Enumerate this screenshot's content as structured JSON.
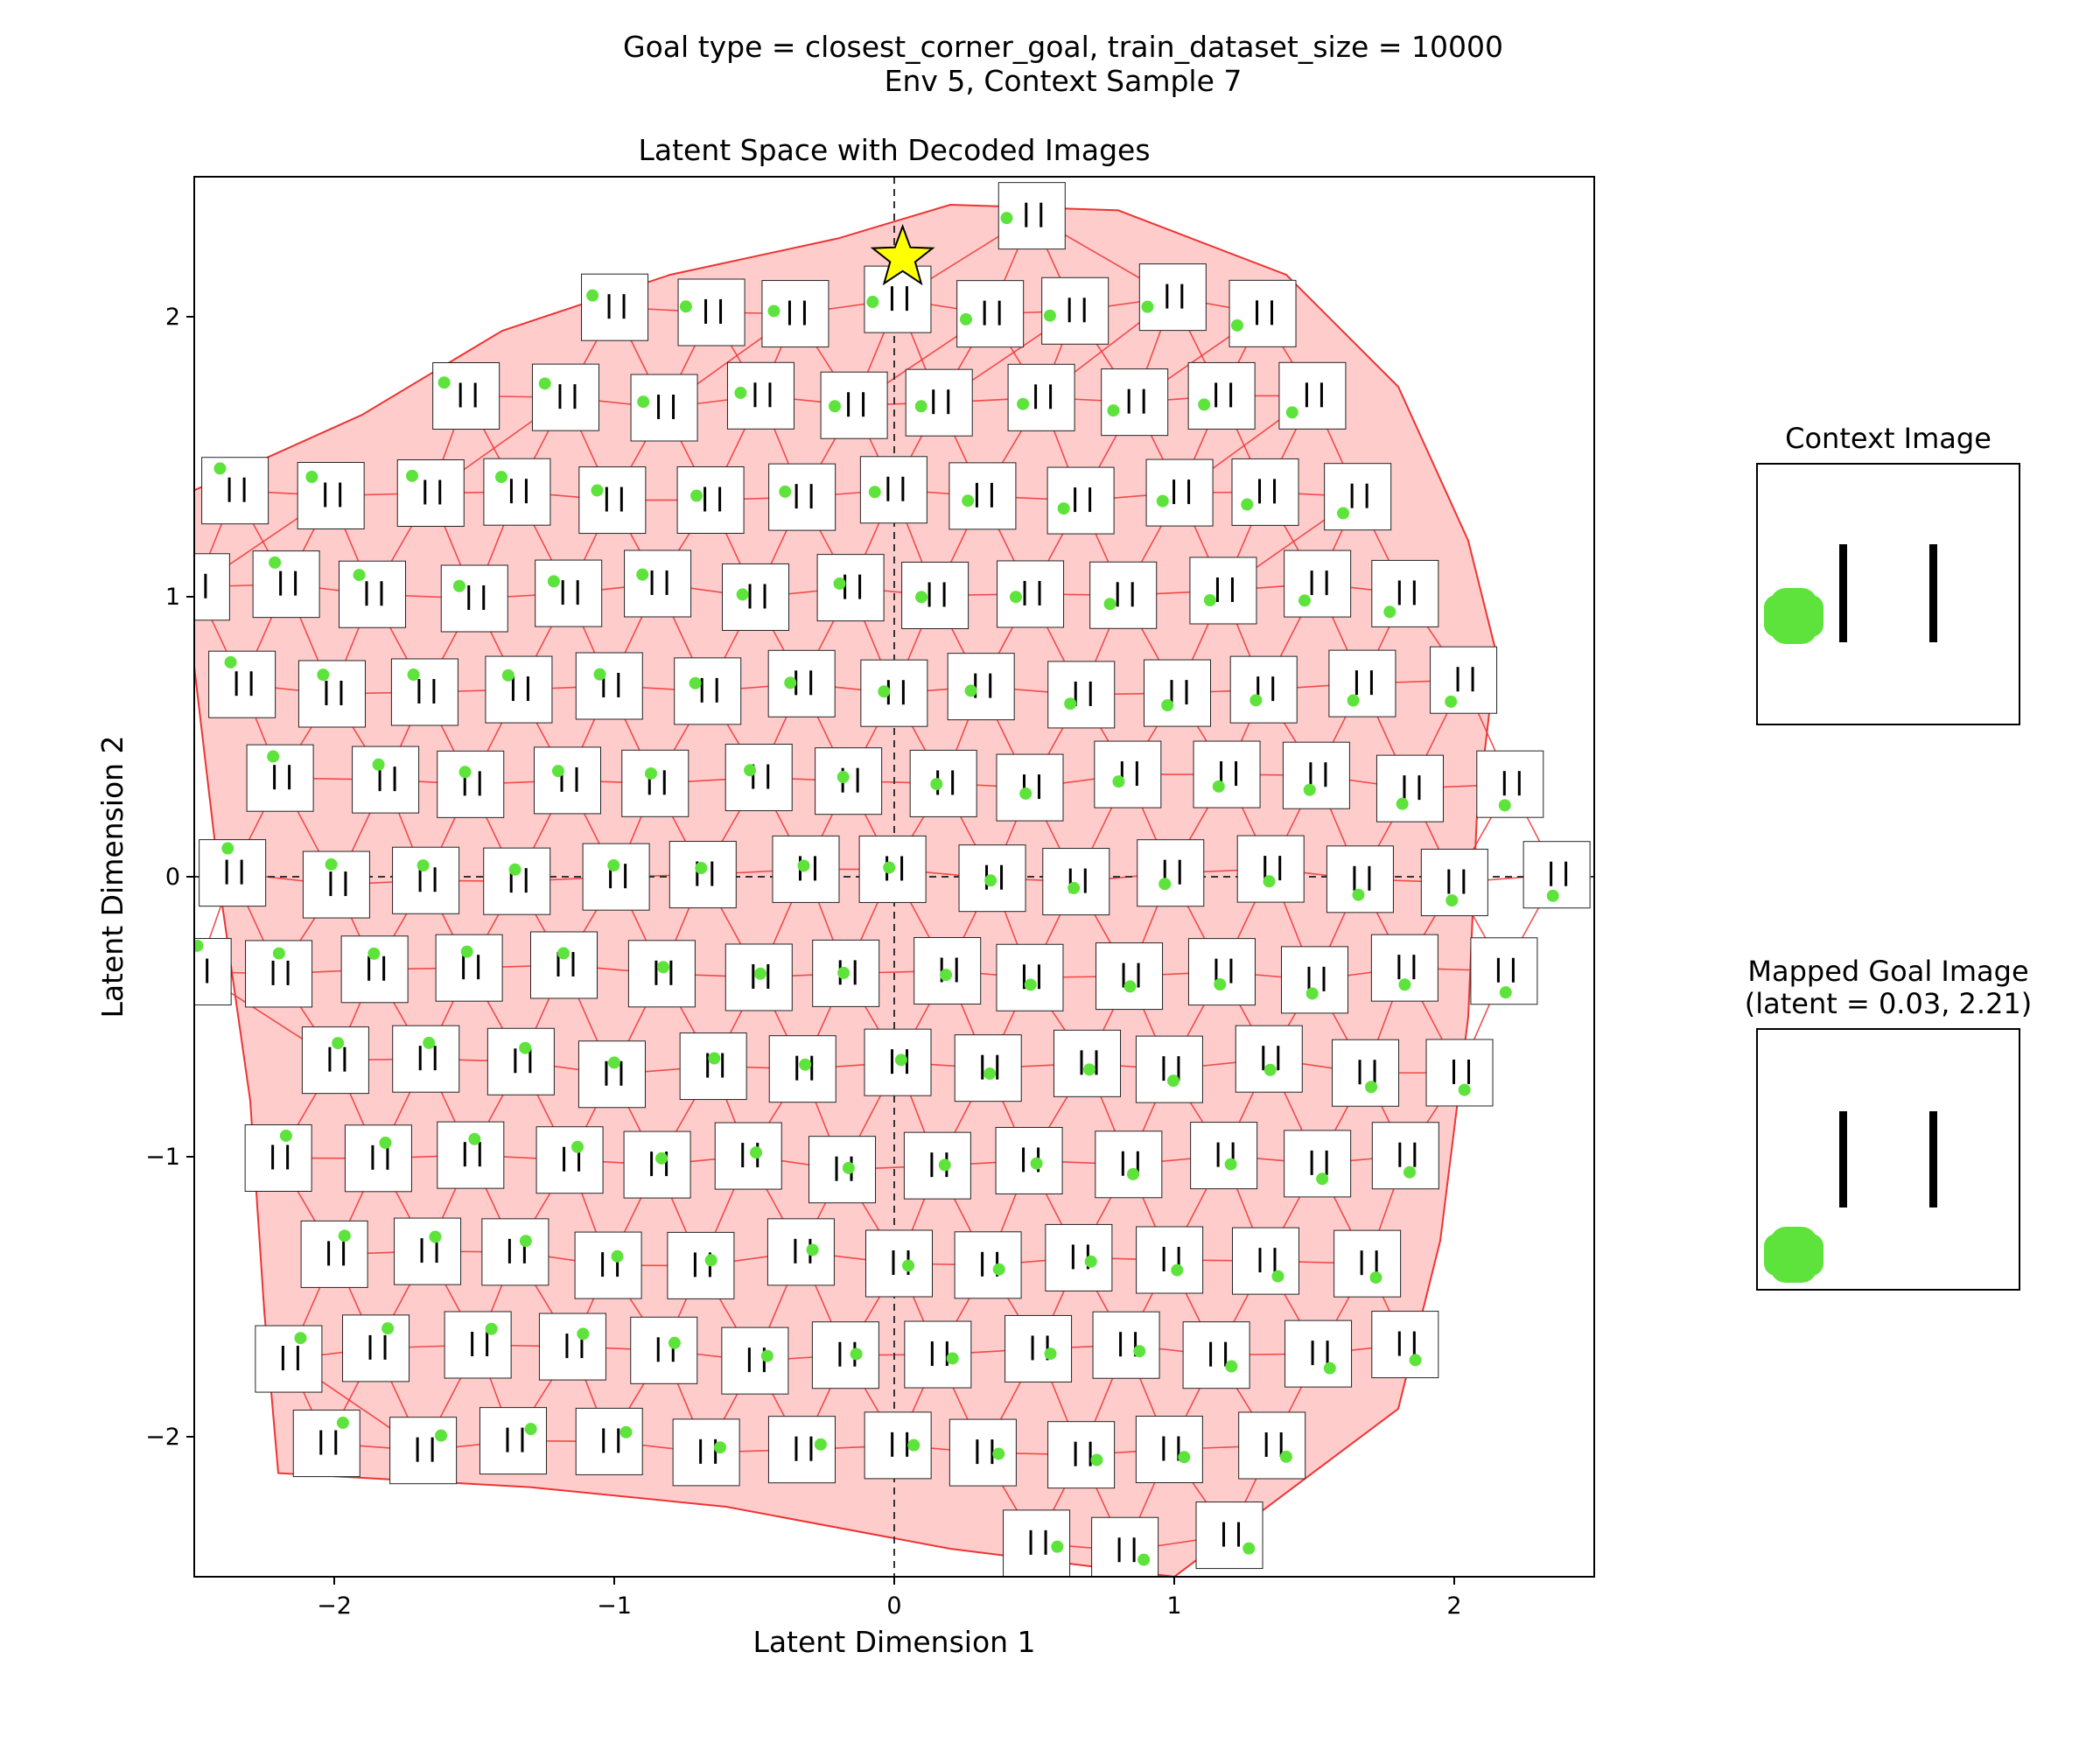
{
  "suptitle": {
    "line1": "Goal type = closest_corner_goal, train_dataset_size = 10000",
    "line2": "Env 5, Context Sample 7"
  },
  "main_plot": {
    "title": "Latent Space with Decoded Images",
    "xlabel": "Latent Dimension 1",
    "ylabel": "Latent Dimension 2",
    "xlim": [
      -2.5,
      2.5
    ],
    "ylim": [
      -2.5,
      2.5
    ],
    "xticks": [
      -2,
      -1,
      0,
      1,
      2
    ],
    "yticks": [
      -2,
      -1,
      0,
      1,
      2
    ]
  },
  "context_panel": {
    "title": "Context Image"
  },
  "goal_panel": {
    "title_line1": "Mapped Goal Image",
    "title_line2": "(latent = 0.03, 2.21)"
  },
  "colors": {
    "region_fill": "#ffcccc",
    "mesh_edge": "#ee3333",
    "dot": "#5ee33c",
    "bar": "#000000",
    "star": "#ffff00"
  },
  "chart_data": {
    "type": "scatter",
    "title": "Latent Space with Decoded Images",
    "xlabel": "Latent Dimension 1",
    "ylabel": "Latent Dimension 2",
    "xlim": [
      -2.5,
      2.5
    ],
    "ylim": [
      -2.5,
      2.5
    ],
    "grid": false,
    "reference_lines": {
      "x": 0,
      "y": 0,
      "style": "dashed"
    },
    "goal_marker": {
      "x": 0.03,
      "y": 2.21,
      "marker": "star"
    },
    "region_hull": [
      [
        -2.5,
        1.38
      ],
      [
        -1.9,
        1.65
      ],
      [
        -1.4,
        1.95
      ],
      [
        -0.8,
        2.15
      ],
      [
        -0.2,
        2.28
      ],
      [
        0.2,
        2.4
      ],
      [
        0.8,
        2.38
      ],
      [
        1.4,
        2.15
      ],
      [
        1.8,
        1.75
      ],
      [
        2.05,
        1.2
      ],
      [
        2.15,
        0.8
      ],
      [
        2.08,
        0.2
      ],
      [
        2.05,
        -0.5
      ],
      [
        1.95,
        -1.3
      ],
      [
        1.8,
        -1.9
      ],
      [
        1.0,
        -2.5
      ],
      [
        0.2,
        -2.4
      ],
      [
        -0.6,
        -2.25
      ],
      [
        -1.3,
        -2.18
      ],
      [
        -2.2,
        -2.13
      ],
      [
        -2.25,
        -1.55
      ],
      [
        -2.3,
        -0.8
      ],
      [
        -2.4,
        -0.1
      ],
      [
        -2.5,
        0.75
      ]
    ]
  }
}
